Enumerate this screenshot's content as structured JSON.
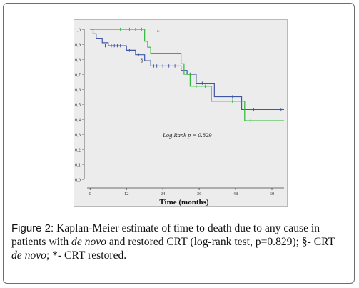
{
  "chart_data": {
    "type": "line",
    "step": true,
    "xlabel": "Time (months)",
    "ylabel": "",
    "xlim": [
      -1,
      64
    ],
    "ylim": [
      0,
      1.0
    ],
    "x_ticks": [
      0,
      12,
      24,
      36,
      48,
      60
    ],
    "y_ticks": [
      0.0,
      0.1,
      0.2,
      0.3,
      0.4,
      0.5,
      0.6,
      0.7,
      0.8,
      0.9,
      1.0
    ],
    "y_tick_labels": [
      "0,0",
      "0,1",
      "0,2",
      "0,3",
      "0,4",
      "0,5",
      "0,6",
      "0,7",
      "0,8",
      "0,9",
      "1,0"
    ],
    "series": [
      {
        "color": "#3f55a6",
        "x": [
          0,
          1,
          2,
          4,
          6,
          12,
          15,
          18,
          20,
          30,
          32,
          35,
          41,
          50,
          64
        ],
        "y": [
          1.0,
          0.97,
          0.94,
          0.91,
          0.89,
          0.86,
          0.83,
          0.79,
          0.755,
          0.725,
          0.7,
          0.64,
          0.55,
          0.465,
          0.465
        ],
        "censored": [
          [
            5,
            0.89
          ],
          [
            7,
            0.89
          ],
          [
            8,
            0.89
          ],
          [
            9,
            0.89
          ],
          [
            10,
            0.89
          ],
          [
            13,
            0.86
          ],
          [
            16,
            0.83
          ],
          [
            21,
            0.755
          ],
          [
            22,
            0.755
          ],
          [
            24,
            0.755
          ],
          [
            26,
            0.755
          ],
          [
            28,
            0.755
          ],
          [
            33,
            0.7
          ],
          [
            37,
            0.64
          ],
          [
            47,
            0.55
          ],
          [
            54,
            0.465
          ],
          [
            58,
            0.465
          ],
          [
            63,
            0.465
          ]
        ]
      },
      {
        "color": "#2fb838",
        "x": [
          0,
          18,
          19,
          20,
          30,
          31,
          33,
          40,
          51,
          64
        ],
        "y": [
          1.0,
          0.92,
          0.88,
          0.84,
          0.77,
          0.7,
          0.62,
          0.52,
          0.39,
          0.39
        ],
        "censored": [
          [
            10,
            1.0
          ],
          [
            13,
            1.0
          ],
          [
            15,
            1.0
          ],
          [
            17,
            1.0
          ],
          [
            29,
            0.84
          ],
          [
            35,
            0.62
          ],
          [
            38,
            0.62
          ],
          [
            47,
            0.52
          ],
          [
            53,
            0.39
          ]
        ]
      }
    ],
    "annotations": [
      {
        "text": "*",
        "x": 22,
        "y": 0.97
      },
      {
        "text": "§",
        "x": 16.5,
        "y": 0.78
      },
      {
        "text": "Log Rank  p = 0.829",
        "x": 24,
        "y": 0.28,
        "italic": true
      }
    ]
  },
  "caption": {
    "label": "Figure 2:",
    "part1": " Kaplan-Meier estimate of time to death due to any cause in patients with ",
    "denovo1": "de novo",
    "part2": " and restored CRT (log-rank test, p=0.829); §- CRT ",
    "denovo2": "de novo",
    "part3": "; *- CRT restored."
  }
}
